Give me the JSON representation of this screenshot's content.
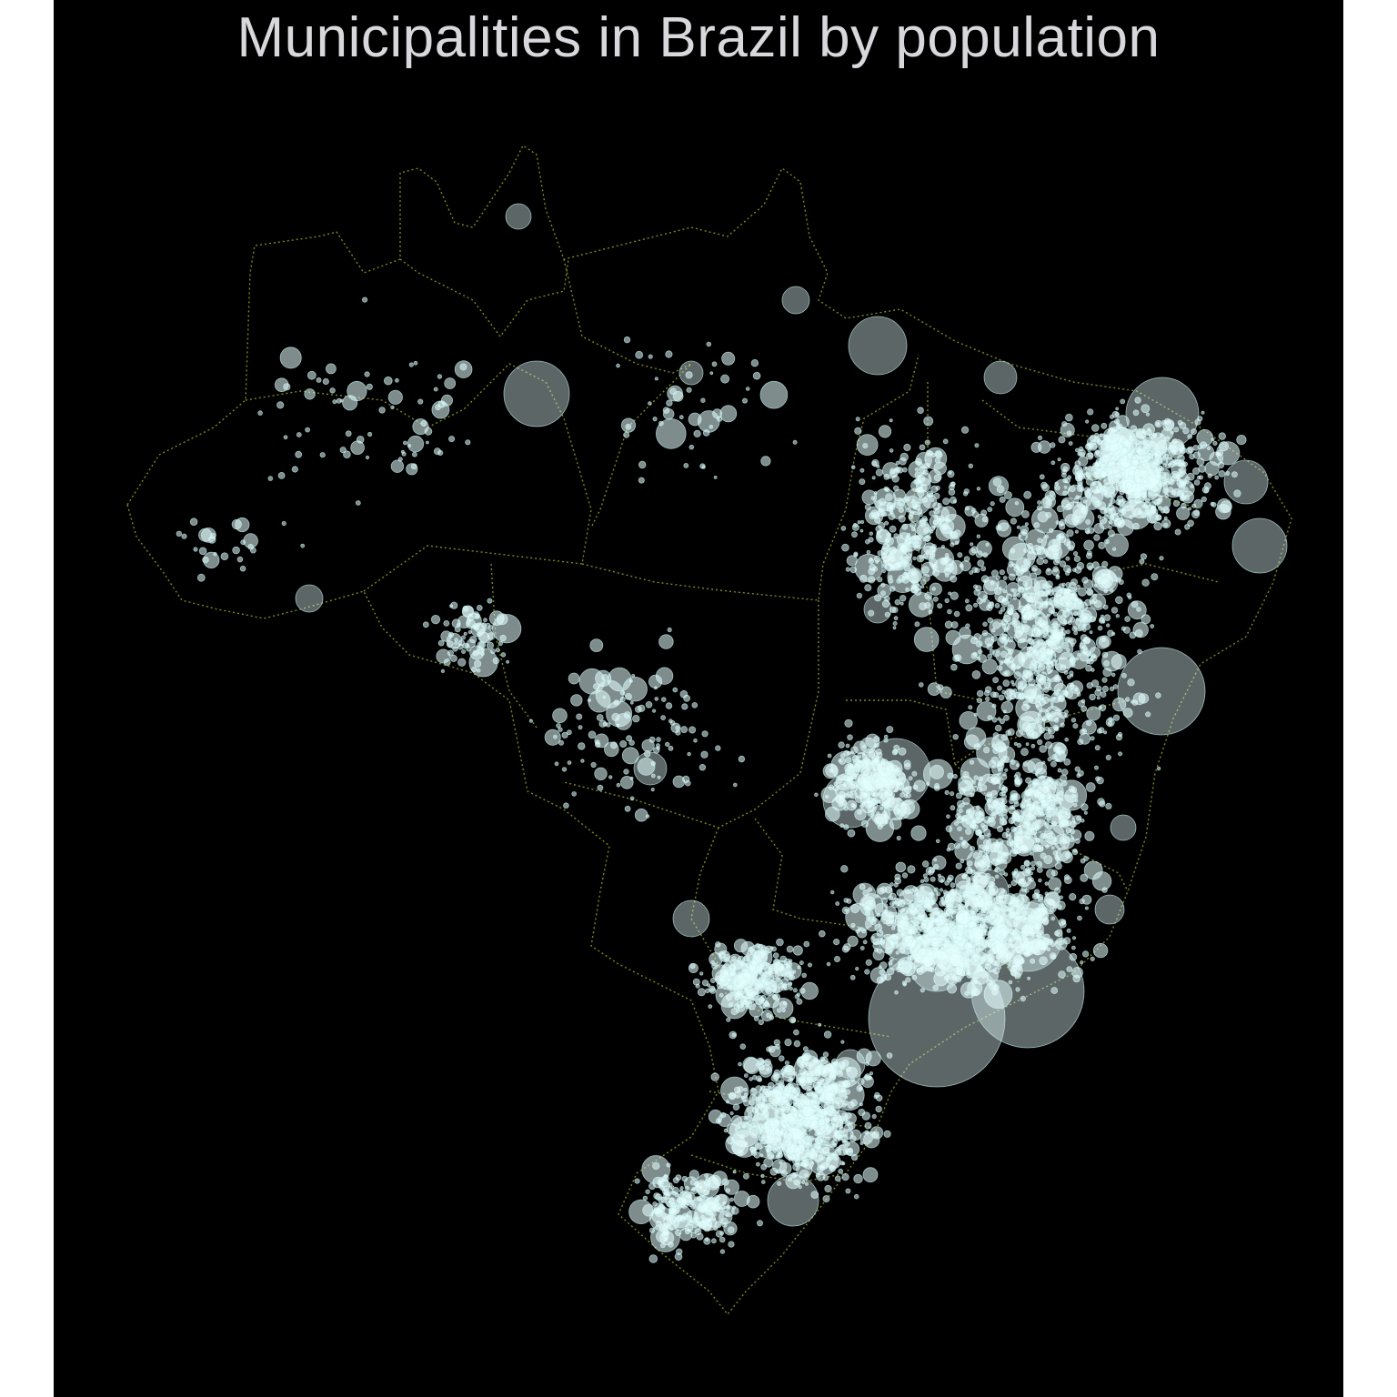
{
  "title": "Municipalities in Brazil by population",
  "colors": {
    "background": "#000000",
    "page": "#ffffff",
    "title_text": "#d8d8dc",
    "bubble_fill": "#e6ffff",
    "bubble_stroke": "#c8f0f0",
    "border": "#7a8a1c"
  },
  "map_data": {
    "type": "proportional-symbol-map",
    "symbol": "circle sized by population",
    "encoding": "semi-transparent light cyan bubbles over dotted state boundaries"
  }
}
